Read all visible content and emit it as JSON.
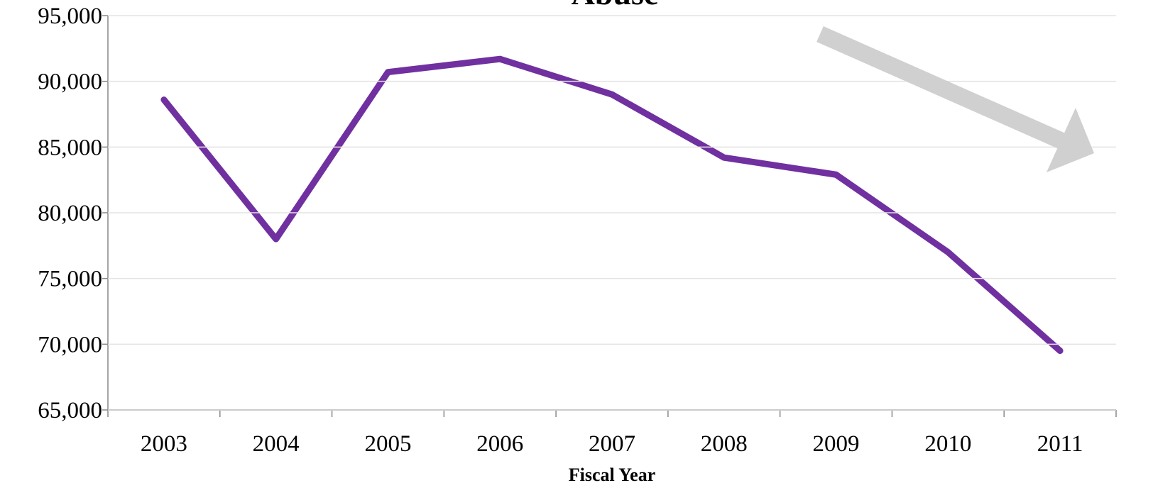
{
  "chart_data": {
    "type": "line",
    "title": "Abuse",
    "x_label": "Fiscal Year",
    "categories": [
      "2003",
      "2004",
      "2005",
      "2006",
      "2007",
      "2008",
      "2009",
      "2010",
      "2011"
    ],
    "values": [
      88600,
      78000,
      90700,
      91700,
      89000,
      84200,
      82900,
      77000,
      69500
    ],
    "color": "#7030a0",
    "ylim": [
      65000,
      95000
    ],
    "yticks": [
      {
        "value": 65000,
        "label": "65,000"
      },
      {
        "value": 70000,
        "label": "70,000"
      },
      {
        "value": 75000,
        "label": "75,000"
      },
      {
        "value": 80000,
        "label": "80,000"
      },
      {
        "value": 85000,
        "label": "85,000"
      },
      {
        "value": 90000,
        "label": "90,000"
      },
      {
        "value": 95000,
        "label": "95,000"
      }
    ],
    "grid": true
  }
}
